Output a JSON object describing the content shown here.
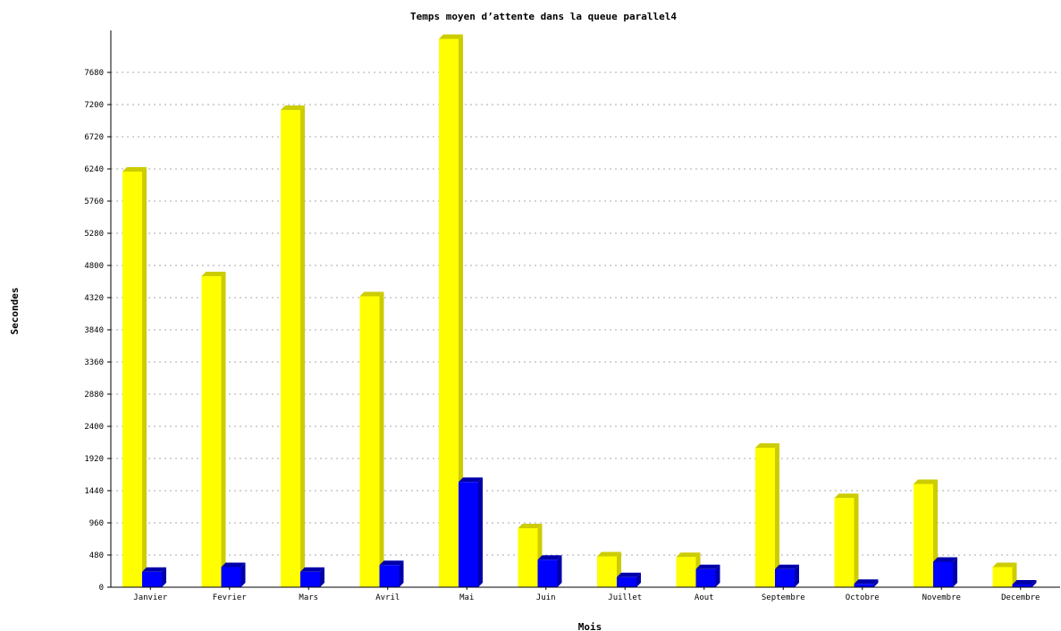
{
  "chart_data": {
    "type": "bar",
    "title": "Temps moyen d’attente dans la queue parallel4",
    "xlabel": "Mois",
    "ylabel": "Secondes",
    "categories": [
      "Janvier",
      "Fevrier",
      "Mars",
      "Avril",
      "Mai",
      "Juin",
      "Juillet",
      "Aout",
      "Septembre",
      "Octobre",
      "Novembre",
      "Decembre"
    ],
    "series": [
      {
        "values": [
          6200,
          4640,
          7120,
          4340,
          8180,
          880,
          460,
          450,
          2080,
          1330,
          1540,
          300
        ]
      },
      {
        "values": [
          230,
          300,
          230,
          330,
          1570,
          410,
          150,
          270,
          270,
          50,
          380,
          40
        ]
      }
    ],
    "ylim": [
      0,
      8160
    ],
    "yticks": [
      0,
      480,
      960,
      1440,
      1920,
      2400,
      2880,
      3360,
      3840,
      4320,
      4800,
      5280,
      5760,
      6240,
      6720,
      7200,
      7680
    ],
    "grid": true,
    "legend": "none",
    "colors": {
      "series1_face": "#ffff00",
      "series1_side": "#cccc00",
      "series2_face": "#0000ff",
      "series2_side": "#0000aa",
      "axis": "#000000",
      "grid": "#aaaaaa"
    }
  }
}
